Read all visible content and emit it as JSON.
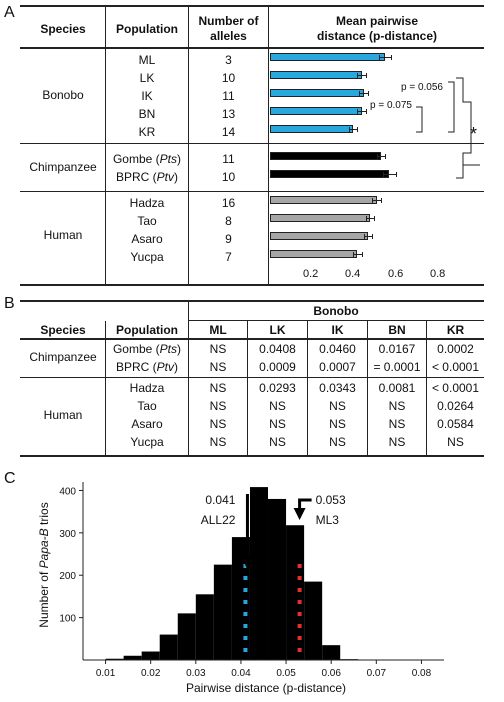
{
  "panels": {
    "a": "A",
    "b": "B",
    "c": "C"
  },
  "table_a": {
    "headers": {
      "species": "Species",
      "population": "Population",
      "alleles_l1": "Number of",
      "alleles_l2": "alleles",
      "dist_l1": "Mean pairwise",
      "dist_l2": "distance (p-distance)"
    },
    "groups": [
      {
        "species": "Bonobo",
        "rows": [
          {
            "pop": "ML",
            "alleles": "3",
            "value": 0.54,
            "err": 0.03
          },
          {
            "pop": "LK",
            "alleles": "10",
            "value": 0.43,
            "err": 0.02
          },
          {
            "pop": "IK",
            "alleles": "11",
            "value": 0.44,
            "err": 0.02
          },
          {
            "pop": "BN",
            "alleles": "13",
            "value": 0.43,
            "err": 0.02
          },
          {
            "pop": "KR",
            "alleles": "14",
            "value": 0.39,
            "err": 0.02
          }
        ]
      },
      {
        "species": "Chimpanzee",
        "rows": [
          {
            "pop": "Gombe",
            "pop_italic": "Pts",
            "alleles": "11",
            "value": 0.52,
            "err": 0.02
          },
          {
            "pop": "BPRC",
            "pop_italic": "Ptv",
            "alleles": "10",
            "value": 0.56,
            "err": 0.03
          }
        ]
      },
      {
        "species": "Human",
        "rows": [
          {
            "pop": "Hadza",
            "alleles": "16",
            "value": 0.5,
            "err": 0.02
          },
          {
            "pop": "Tao",
            "alleles": "8",
            "value": 0.47,
            "err": 0.02
          },
          {
            "pop": "Asaro",
            "alleles": "9",
            "value": 0.46,
            "err": 0.02
          },
          {
            "pop": "Yucpa",
            "alleles": "7",
            "value": 0.41,
            "err": 0.02
          }
        ]
      }
    ],
    "axis_ticks": [
      "0.2",
      "0.4",
      "0.6",
      "0.8"
    ],
    "annotations": {
      "p1": "p = 0.075",
      "p2": "p = 0.056",
      "star": "*"
    },
    "colors": {
      "bonobo": "#29a8e0",
      "chimpanzee": "#000000",
      "human": "#a6a6a6"
    }
  },
  "table_b": {
    "group_header": "Bonobo",
    "headers": [
      "Species",
      "Population",
      "ML",
      "LK",
      "IK",
      "BN",
      "KR"
    ],
    "groups": [
      {
        "species": "Chimpanzee",
        "rows": [
          {
            "pop": "Gombe",
            "pop_italic": "Pts",
            "cells": [
              "NS",
              "0.0408",
              "0.0460",
              "0.0167",
              "0.0002"
            ]
          },
          {
            "pop": "BPRC",
            "pop_italic": "Ptv",
            "cells": [
              "NS",
              "0.0009",
              "0.0007",
              "= 0.0001",
              "< 0.0001"
            ]
          }
        ]
      },
      {
        "species": "Human",
        "rows": [
          {
            "pop": "Hadza",
            "cells": [
              "NS",
              "0.0293",
              "0.0343",
              "0.0081",
              "< 0.0001"
            ]
          },
          {
            "pop": "Tao",
            "cells": [
              "NS",
              "NS",
              "NS",
              "NS",
              "0.0264"
            ]
          },
          {
            "pop": "Asaro",
            "cells": [
              "NS",
              "NS",
              "NS",
              "NS",
              "0.0584"
            ]
          },
          {
            "pop": "Yucpa",
            "cells": [
              "NS",
              "NS",
              "NS",
              "NS",
              "NS"
            ]
          }
        ]
      }
    ]
  },
  "chart_data": {
    "type": "bar",
    "ylabel_pre": "Number of ",
    "ylabel_italic": "Papa-B",
    "ylabel_post": " trios",
    "xlabel": "Pairwise distance (p-distance)",
    "xlim": [
      0.005,
      0.085
    ],
    "ylim": [
      0,
      420
    ],
    "x_ticks": [
      "0.01",
      "0.02",
      "0.03",
      "0.04",
      "0.05",
      "0.06",
      "0.07",
      "0.08"
    ],
    "y_ticks": [
      "100",
      "200",
      "300",
      "400"
    ],
    "bin_width": 0.004,
    "bins_start": [
      0.01,
      0.014,
      0.018,
      0.022,
      0.026,
      0.03,
      0.034,
      0.038,
      0.042,
      0.046,
      0.05,
      0.054,
      0.058,
      0.062
    ],
    "values": [
      3,
      10,
      20,
      60,
      110,
      155,
      225,
      290,
      408,
      380,
      318,
      185,
      35,
      2
    ],
    "markers": [
      {
        "x": 0.041,
        "label_value": "0.041",
        "label_name": "ALL22",
        "color": "#29a8e0"
      },
      {
        "x": 0.053,
        "label_value": "0.053",
        "label_name": "ML3",
        "color": "#e03030"
      }
    ]
  }
}
